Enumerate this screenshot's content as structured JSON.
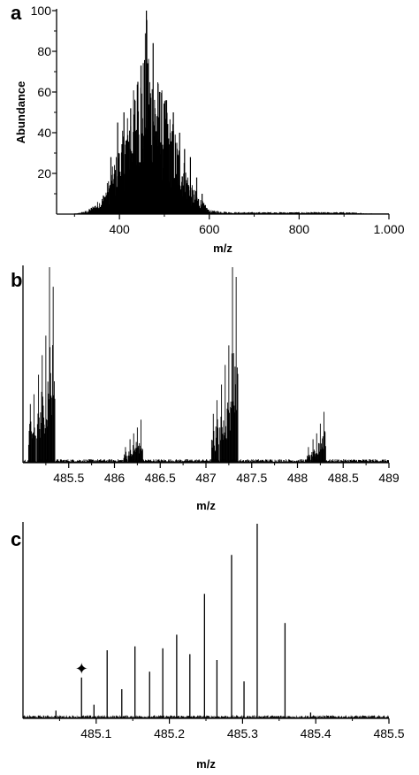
{
  "panels": [
    {
      "letter": "a",
      "xlabel": "m/z",
      "ylabel": "Abundance",
      "xlim": [
        260,
        1000
      ],
      "ylim": [
        0,
        100
      ],
      "xticks": [
        {
          "v": 400,
          "label": "400"
        },
        {
          "v": 600,
          "label": "600"
        },
        {
          "v": 800,
          "label": "800"
        },
        {
          "v": 1000,
          "label": "1.000"
        }
      ],
      "yticks": [
        {
          "v": 20,
          "label": "20"
        },
        {
          "v": 40,
          "label": "40"
        },
        {
          "v": 60,
          "label": "60"
        },
        {
          "v": 80,
          "label": "80"
        },
        {
          "v": 100,
          "label": "100"
        }
      ]
    },
    {
      "letter": "b",
      "xlabel": "m/z",
      "ylabel": "",
      "xlim": [
        485.0,
        489.0
      ],
      "ylim": [
        0,
        100
      ],
      "xticks": [
        {
          "v": 485.5,
          "label": "485.5"
        },
        {
          "v": 486.0,
          "label": "486"
        },
        {
          "v": 486.5,
          "label": "486.5"
        },
        {
          "v": 487.0,
          "label": "487"
        },
        {
          "v": 487.5,
          "label": "487.5"
        },
        {
          "v": 488.0,
          "label": "488"
        },
        {
          "v": 488.5,
          "label": "488.5"
        },
        {
          "v": 489.0,
          "label": "489"
        }
      ],
      "yticks": []
    },
    {
      "letter": "c",
      "xlabel": "m/z",
      "ylabel": "",
      "xlim": [
        485.0,
        485.5
      ],
      "ylim": [
        0,
        100
      ],
      "marker": "✦",
      "xticks": [
        {
          "v": 485.1,
          "label": "485.1"
        },
        {
          "v": 485.2,
          "label": "485.2"
        },
        {
          "v": 485.3,
          "label": "485.3"
        },
        {
          "v": 485.4,
          "label": "485.4"
        },
        {
          "v": 485.5,
          "label": "485.5"
        }
      ],
      "yticks": []
    }
  ],
  "chart_data": [
    {
      "type": "line",
      "panel": "a",
      "envelope": {
        "x": [
          300,
          330,
          360,
          380,
          400,
          420,
          440,
          455,
          460,
          470,
          480,
          490,
          500,
          520,
          540,
          560,
          580,
          600,
          650,
          700,
          800,
          900,
          1000
        ],
        "y": [
          0,
          2,
          8,
          20,
          35,
          52,
          70,
          80,
          100,
          75,
          72,
          65,
          58,
          45,
          30,
          15,
          8,
          2,
          1,
          1,
          1,
          1,
          0
        ]
      },
      "peaks": {
        "x": [
          381,
          396,
          410,
          425,
          441,
          448,
          460,
          475,
          490,
          505,
          520,
          534,
          545,
          558,
          572,
          584
        ],
        "y": [
          28,
          45,
          50,
          52,
          65,
          73,
          100,
          84,
          60,
          56,
          50,
          40,
          32,
          28,
          18,
          10
        ]
      }
    },
    {
      "type": "line",
      "panel": "b",
      "x": [
        485.08,
        485.12,
        485.17,
        485.21,
        485.25,
        485.29,
        485.33,
        486.12,
        486.17,
        486.21,
        486.25,
        486.29,
        487.08,
        487.12,
        487.17,
        487.21,
        487.25,
        487.29,
        487.33,
        488.12,
        488.17,
        488.21,
        488.25,
        488.29
      ],
      "y": [
        30,
        35,
        45,
        55,
        65,
        100,
        90,
        8,
        12,
        15,
        18,
        22,
        25,
        32,
        40,
        50,
        60,
        100,
        95,
        8,
        12,
        15,
        20,
        26
      ]
    },
    {
      "type": "line",
      "panel": "c",
      "x": [
        485.045,
        485.08,
        485.097,
        485.115,
        485.135,
        485.153,
        485.173,
        485.191,
        485.21,
        485.228,
        485.248,
        485.265,
        485.285,
        485.302,
        485.32,
        485.358,
        485.393
      ],
      "y": [
        4,
        21,
        7,
        35,
        15,
        37,
        24,
        36,
        43,
        33,
        64,
        30,
        84,
        19,
        100,
        49,
        3
      ]
    }
  ]
}
